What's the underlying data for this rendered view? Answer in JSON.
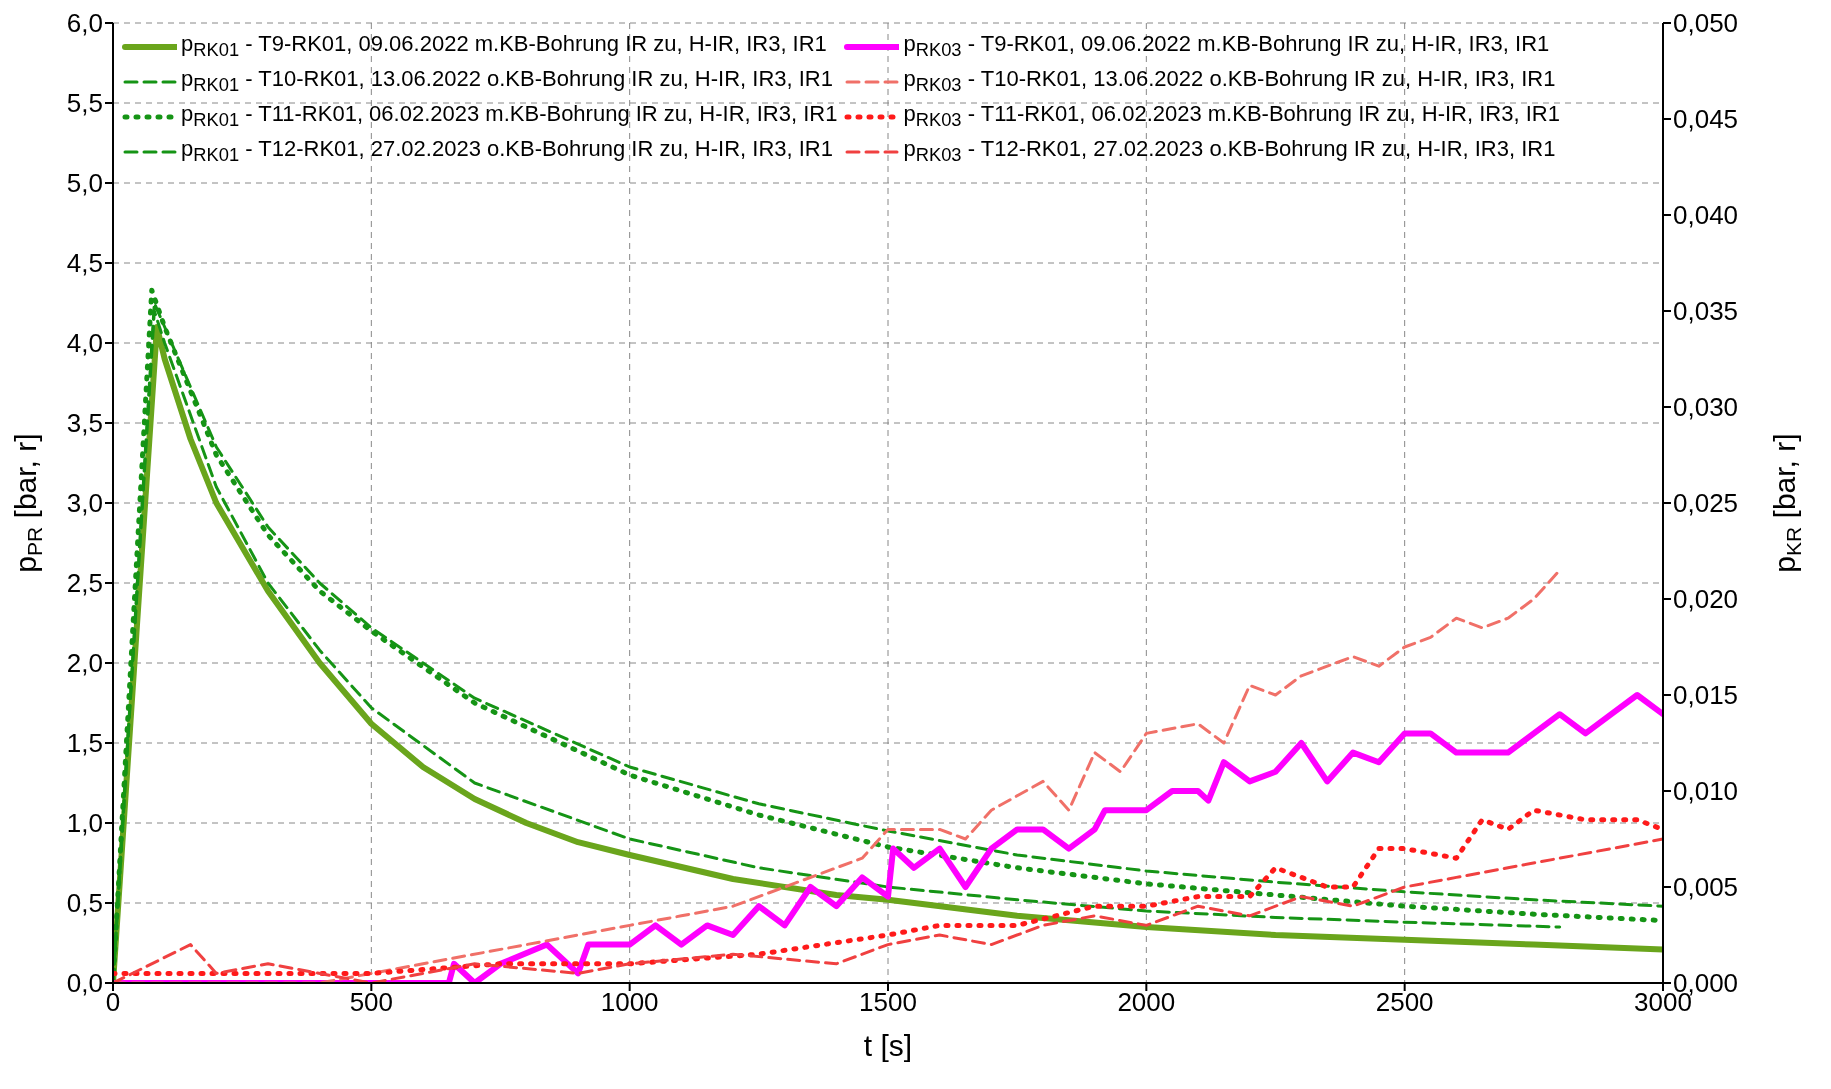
{
  "chart_data": {
    "type": "line",
    "xlabel": "t [s]",
    "ylabel": "p$_{PR}$ [bar, r]",
    "y2label": "p$_{KR}$ [bar, r]",
    "xlim": [
      0,
      3000
    ],
    "xticks": [
      0,
      500,
      1000,
      1500,
      2000,
      2500,
      3000
    ],
    "ylim": [
      0,
      6
    ],
    "yticks": [
      {
        "value": 0,
        "label": "0,0"
      },
      {
        "value": 0.5,
        "label": "0,5"
      },
      {
        "value": 1,
        "label": "1,0"
      },
      {
        "value": 1.5,
        "label": "1,5"
      },
      {
        "value": 2,
        "label": "2,0"
      },
      {
        "value": 2.5,
        "label": "2,5"
      },
      {
        "value": 3,
        "label": "3,0"
      },
      {
        "value": 3.5,
        "label": "3,5"
      },
      {
        "value": 4,
        "label": "4,0"
      },
      {
        "value": 4.5,
        "label": "4,5"
      },
      {
        "value": 5,
        "label": "5,0"
      },
      {
        "value": 5.5,
        "label": "5,5"
      },
      {
        "value": 6,
        "label": "6,0"
      }
    ],
    "y2lim": [
      0,
      0.05
    ],
    "y2ticks": [
      {
        "value": 0,
        "label": "0,000"
      },
      {
        "value": 0.005,
        "label": "0,005"
      },
      {
        "value": 0.01,
        "label": "0,010"
      },
      {
        "value": 0.015,
        "label": "0,015"
      },
      {
        "value": 0.02,
        "label": "0,020"
      },
      {
        "value": 0.025,
        "label": "0,025"
      },
      {
        "value": 0.03,
        "label": "0,030"
      },
      {
        "value": 0.035,
        "label": "0,035"
      },
      {
        "value": 0.04,
        "label": "0,040"
      },
      {
        "value": 0.045,
        "label": "0,045"
      },
      {
        "value": 0.05,
        "label": "0,050"
      }
    ],
    "grid": true,
    "legend": "top",
    "marker": "none",
    "series": [
      {
        "name": "p$_{RK01}$ - T9-RK01, 09.06.2022 m.KB-Bohrung IR zu, H-IR, IR3, IR1",
        "color": "#6aa51c",
        "line_style": "solid",
        "x": [
          0,
          85,
          100,
          150,
          200,
          300,
          400,
          500,
          600,
          700,
          800,
          900,
          1000,
          1200,
          1400,
          1500,
          1750,
          2000,
          2250,
          2500,
          2750,
          3000
        ],
        "values": [
          0,
          4.1,
          3.9,
          3.4,
          3.0,
          2.45,
          2.0,
          1.62,
          1.35,
          1.15,
          1.0,
          0.88,
          0.8,
          0.65,
          0.55,
          0.52,
          0.42,
          0.35,
          0.3,
          0.27,
          0.24,
          0.21
        ]
      },
      {
        "name": "p$_{RK01}$ - T10-RK01, 13.06.2022 o.KB-Bohrung IR zu, H-IR, IR3, IR1",
        "color": "#159415",
        "line_style": "dashed",
        "x": [
          0,
          80,
          100,
          200,
          300,
          400,
          500,
          700,
          1000,
          1250,
          1500,
          1750,
          2000,
          2250,
          2500,
          2800
        ],
        "values": [
          0,
          4.2,
          4.0,
          3.1,
          2.5,
          2.08,
          1.72,
          1.25,
          0.9,
          0.72,
          0.6,
          0.52,
          0.45,
          0.41,
          0.38,
          0.35
        ]
      },
      {
        "name": "p$_{RK01}$ - T11-RK01, 06.02.2023 m.KB-Bohrung IR zu, H-IR, IR3, IR1",
        "color": "#159415",
        "line_style": "dotted",
        "x": [
          0,
          75,
          100,
          200,
          300,
          400,
          500,
          700,
          1000,
          1250,
          1500,
          1750,
          2000,
          2250,
          2500,
          2750,
          3000
        ],
        "values": [
          0,
          4.33,
          4.1,
          3.3,
          2.8,
          2.45,
          2.2,
          1.75,
          1.3,
          1.05,
          0.85,
          0.72,
          0.62,
          0.55,
          0.48,
          0.43,
          0.39
        ]
      },
      {
        "name": "p$_{RK01}$ - T12-RK01, 27.02.2023 o.KB-Bohrung IR zu, H-IR, IR3, IR1",
        "color": "#159415",
        "line_style": "dashed",
        "x": [
          0,
          80,
          100,
          200,
          300,
          400,
          500,
          700,
          1000,
          1250,
          1500,
          1750,
          2000,
          2250,
          2500,
          2750,
          3000
        ],
        "values": [
          0,
          4.25,
          4.1,
          3.35,
          2.85,
          2.5,
          2.22,
          1.78,
          1.35,
          1.12,
          0.95,
          0.8,
          0.7,
          0.63,
          0.57,
          0.52,
          0.48
        ]
      },
      {
        "name": "p$_{RK03}$ - T9-RK01, 09.06.2022 m.KB-Bohrung IR zu, H-IR, IR3, IR1",
        "color": "#ff00ff",
        "line_style": "solid",
        "axis": "y2",
        "x": [
          0,
          650,
          660,
          700,
          750,
          840,
          900,
          920,
          1000,
          1050,
          1100,
          1150,
          1200,
          1250,
          1300,
          1350,
          1400,
          1450,
          1500,
          1510,
          1550,
          1600,
          1650,
          1700,
          1750,
          1800,
          1850,
          1900,
          1920,
          2000,
          2050,
          2100,
          2120,
          2150,
          2200,
          2250,
          2300,
          2350,
          2400,
          2450,
          2500,
          2550,
          2600,
          2700,
          2750,
          2800,
          2850,
          2900,
          2950,
          3000
        ],
        "values": [
          0,
          0,
          0.001,
          0,
          0.001,
          0.002,
          0.0005,
          0.002,
          0.002,
          0.003,
          0.002,
          0.003,
          0.0025,
          0.004,
          0.003,
          0.005,
          0.004,
          0.0055,
          0.0045,
          0.007,
          0.006,
          0.007,
          0.005,
          0.007,
          0.008,
          0.008,
          0.007,
          0.008,
          0.009,
          0.009,
          0.01,
          0.01,
          0.0095,
          0.0115,
          0.0105,
          0.011,
          0.0125,
          0.0105,
          0.012,
          0.0115,
          0.013,
          0.013,
          0.012,
          0.012,
          0.013,
          0.014,
          0.013,
          0.014,
          0.015,
          0.014
        ]
      },
      {
        "name": "p$_{RK03}$ - T10-RK01, 13.06.2022 o.KB-Bohrung IR zu, H-IR, IR3, IR1",
        "color": "#f07068",
        "line_style": "dashed",
        "axis": "y2",
        "x": [
          0,
          400,
          600,
          800,
          900,
          1000,
          1100,
          1200,
          1300,
          1400,
          1450,
          1500,
          1600,
          1650,
          1700,
          1800,
          1850,
          1900,
          1950,
          2000,
          2100,
          2150,
          2200,
          2250,
          2300,
          2400,
          2450,
          2500,
          2550,
          2600,
          2650,
          2700,
          2750,
          2800
        ],
        "values": [
          0,
          0,
          0.001,
          0.002,
          0.0025,
          0.003,
          0.0035,
          0.004,
          0.005,
          0.006,
          0.0065,
          0.008,
          0.008,
          0.0075,
          0.009,
          0.0105,
          0.009,
          0.012,
          0.011,
          0.013,
          0.0135,
          0.0125,
          0.0155,
          0.015,
          0.016,
          0.017,
          0.0165,
          0.0175,
          0.018,
          0.019,
          0.0185,
          0.019,
          0.02,
          0.0215
        ]
      },
      {
        "name": "p$_{RK03}$ - T11-RK01, 06.02.2023 m.KB-Bohrung IR zu, H-IR, IR3, IR1",
        "color": "#ff1a1a",
        "line_style": "dotted",
        "axis": "y2",
        "x": [
          0,
          250,
          500,
          750,
          1000,
          1250,
          1500,
          1600,
          1750,
          1900,
          2000,
          2100,
          2200,
          2250,
          2350,
          2400,
          2450,
          2500,
          2600,
          2650,
          2700,
          2750,
          2850,
          2950,
          3000
        ],
        "values": [
          0.0005,
          0.0005,
          0.0005,
          0.001,
          0.001,
          0.0015,
          0.0025,
          0.003,
          0.003,
          0.004,
          0.004,
          0.0045,
          0.0045,
          0.006,
          0.005,
          0.005,
          0.007,
          0.007,
          0.0065,
          0.0085,
          0.008,
          0.009,
          0.0085,
          0.0085,
          0.008
        ]
      },
      {
        "name": "p$_{RK03}$ - T12-RK01, 27.02.2023 o.KB-Bohrung IR zu, H-IR, IR3, IR1",
        "color": "#f04040",
        "line_style": "dashed",
        "axis": "y2",
        "x": [
          0,
          150,
          200,
          300,
          500,
          700,
          900,
          1000,
          1200,
          1400,
          1500,
          1600,
          1700,
          1800,
          1900,
          2000,
          2100,
          2200,
          2300,
          2400,
          2500,
          2600,
          2700,
          2800,
          2900,
          3000
        ],
        "values": [
          0,
          0.002,
          0.0005,
          0.001,
          0,
          0.001,
          0.0005,
          0.001,
          0.0015,
          0.001,
          0.002,
          0.0025,
          0.002,
          0.003,
          0.0035,
          0.003,
          0.004,
          0.0035,
          0.0045,
          0.004,
          0.005,
          0.0055,
          0.006,
          0.0065,
          0.007,
          0.0075
        ]
      }
    ]
  }
}
